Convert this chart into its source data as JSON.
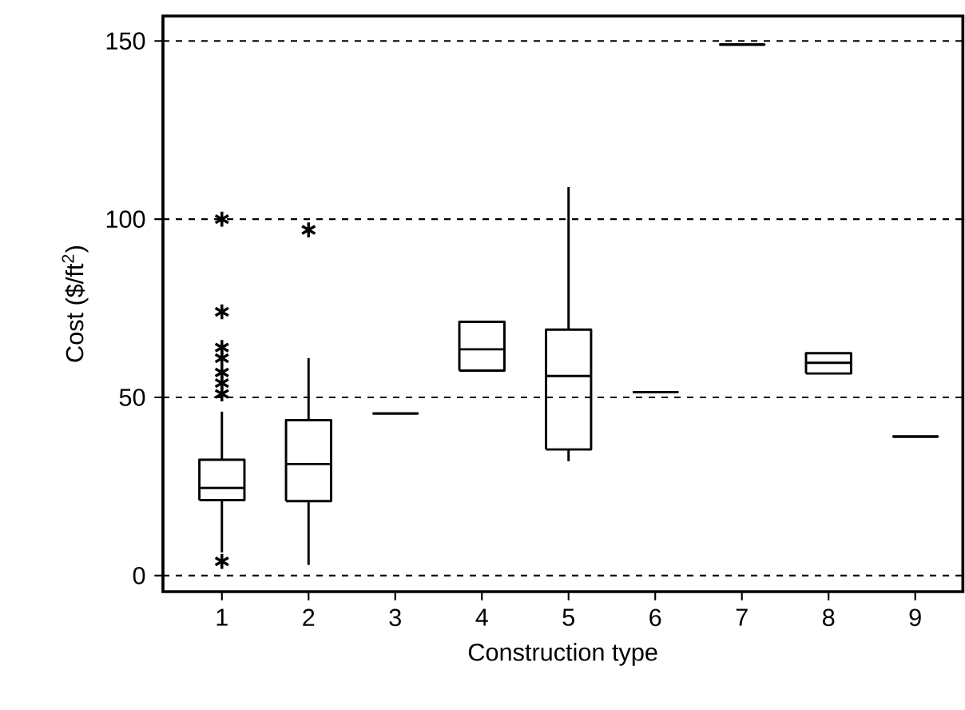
{
  "chart_data": {
    "type": "box",
    "xlabel": "Construction type",
    "ylabel": "Cost ($/ft$^{2}$)",
    "categories": [
      "1",
      "2",
      "3",
      "4",
      "5",
      "6",
      "7",
      "8",
      "9"
    ],
    "boxes": [
      {
        "low": 6.5,
        "q1": 21.2,
        "median": 24.6,
        "q3": 32.5,
        "high": 46,
        "outliers": [
          100,
          74,
          64,
          61,
          57,
          54,
          51,
          4
        ]
      },
      {
        "low": 3,
        "q1": 20.9,
        "median": 31.3,
        "q3": 43.6,
        "high": 61,
        "outliers": [
          97
        ]
      },
      {
        "low": 45.5,
        "q1": 45.5,
        "median": 45.5,
        "q3": 45.5,
        "high": 45.5
      },
      {
        "low": 57.5,
        "q1": 57.5,
        "median": 63.5,
        "q3": 71.2,
        "high": 71.2
      },
      {
        "low": 32.1,
        "q1": 35.4,
        "median": 56,
        "q3": 69,
        "high": 109
      },
      {
        "low": 51.5,
        "q1": 51.5,
        "median": 51.5,
        "q3": 51.5,
        "high": 51.5
      },
      {
        "low": 149,
        "q1": 149,
        "median": 149,
        "q3": 149,
        "high": 149
      },
      {
        "low": 56.7,
        "q1": 56.7,
        "median": 59.7,
        "q3": 62.4,
        "high": 62.4
      },
      {
        "low": 39,
        "q1": 39,
        "median": 39,
        "q3": 39,
        "high": 39
      }
    ],
    "ylim": [
      -4.5,
      157
    ],
    "yticks": [
      0,
      50,
      100,
      150
    ],
    "grid": "y",
    "marker": "star"
  }
}
